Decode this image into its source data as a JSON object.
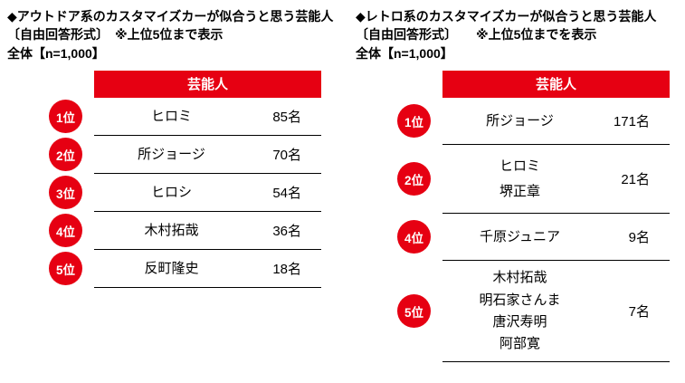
{
  "colors": {
    "accent_red": "#e60012",
    "line_black": "#000000",
    "header_text": "#ffffff"
  },
  "panels": [
    {
      "title": "◆アウトドア系のカスタマイズカーが似合うと思う芸能人",
      "subtitle": "〔自由回答形式〕　※上位5位まで表示",
      "sample": "全体【n=1,000】",
      "column_header": "芸能人",
      "rows": [
        {
          "rank": "1位",
          "names": [
            "ヒロミ"
          ],
          "count": "85名"
        },
        {
          "rank": "2位",
          "names": [
            "所ジョージ"
          ],
          "count": "70名"
        },
        {
          "rank": "3位",
          "names": [
            "ヒロシ"
          ],
          "count": "54名"
        },
        {
          "rank": "4位",
          "names": [
            "木村拓哉"
          ],
          "count": "36名"
        },
        {
          "rank": "5位",
          "names": [
            "反町隆史"
          ],
          "count": "18名"
        }
      ]
    },
    {
      "title": "◆レトロ系のカスタマイズカーが似合うと思う芸能人",
      "subtitle": "〔自由回答形式〕　　※上位5位までを表示",
      "sample": "全体【n=1,000】",
      "column_header": "芸能人",
      "rows": [
        {
          "rank": "1位",
          "names": [
            "所ジョージ"
          ],
          "count": "171名"
        },
        {
          "rank": "2位",
          "names": [
            "ヒロミ",
            "堺正章"
          ],
          "count": "21名"
        },
        {
          "rank": "4位",
          "names": [
            "千原ジュニア"
          ],
          "count": "9名"
        },
        {
          "rank": "5位",
          "names": [
            "木村拓哉",
            "明石家さんま",
            "唐沢寿明",
            "阿部寛"
          ],
          "count": "7名"
        }
      ]
    }
  ],
  "chart_data": [
    {
      "type": "table",
      "title": "◆アウトドア系のカスタマイズカーが似合うと思う芸能人",
      "note": "〔自由回答形式〕　※上位5位まで表示",
      "sample_size": "全体【n=1,000】",
      "column_header": "芸能人",
      "ranks": [
        "1位",
        "2位",
        "3位",
        "4位",
        "5位"
      ],
      "categories": [
        "ヒロミ",
        "所ジョージ",
        "ヒロシ",
        "木村拓哉",
        "反町隆史"
      ],
      "values": [
        85,
        70,
        54,
        36,
        18
      ],
      "unit": "名"
    },
    {
      "type": "table",
      "title": "◆レトロ系のカスタマイズカーが似合うと思う芸能人",
      "note": "〔自由回答形式〕　　※上位5位までを表示",
      "sample_size": "全体【n=1,000】",
      "column_header": "芸能人",
      "ranks": [
        "1位",
        "2位",
        "4位",
        "5位"
      ],
      "categories": [
        "所ジョージ",
        "ヒロミ／堺正章",
        "千原ジュニア",
        "木村拓哉／明石家さんま／唐沢寿明／阿部寛"
      ],
      "values": [
        171,
        21,
        9,
        7
      ],
      "unit": "名"
    }
  ]
}
